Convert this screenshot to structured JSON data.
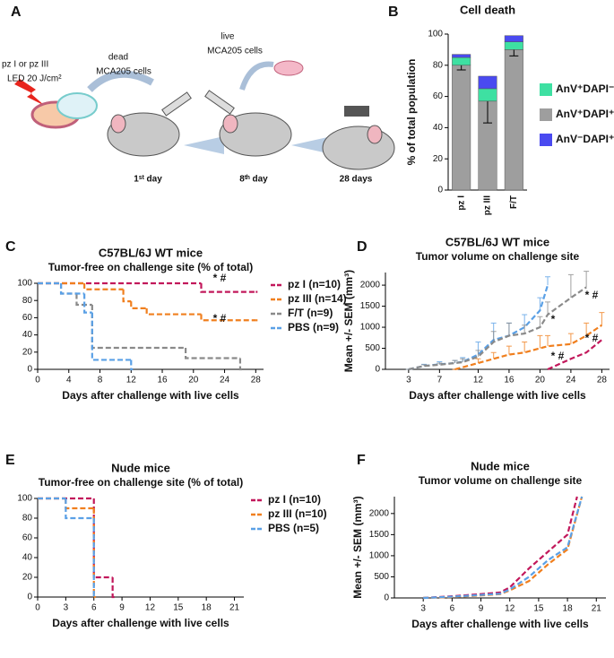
{
  "panel_labels": [
    "A",
    "B",
    "C",
    "D",
    "E",
    "F"
  ],
  "schematic": {
    "texts": [
      "pz I or pz III",
      "LED 20 J/cm²",
      "dead",
      "MCA205 cells",
      "live",
      "MCA205 cells",
      "1ˢᵗ day",
      "8ᵗʰ day",
      "28 days"
    ]
  },
  "chart_data": [
    {
      "type": "bar",
      "stacked": true,
      "title": "Cell death",
      "ylabel": "% of total population",
      "categories": [
        "pz I",
        "pz III",
        "F/T"
      ],
      "legend": "right",
      "series": [
        {
          "name": "AnV⁺DAPI⁺",
          "color": "#9e9e9e",
          "values": [
            80,
            57,
            90
          ],
          "errors": [
            3,
            14,
            4
          ]
        },
        {
          "name": "AnV⁺DAPI⁻",
          "color": "#3ee0a2",
          "values": [
            5,
            8,
            5
          ]
        },
        {
          "name": "AnV⁻DAPI⁺",
          "color": "#4a4af0",
          "values": [
            2,
            8,
            4
          ]
        }
      ],
      "ylim": [
        0,
        100
      ],
      "yticks": [
        0,
        20,
        40,
        60,
        80,
        100
      ]
    },
    {
      "type": "step",
      "title": "C57BL/6J WT mice",
      "subtitle": "Tumor-free on challenge site  (% of total)",
      "xlabel": "Days after challenge with live cells",
      "legend": "right",
      "series": [
        {
          "name": "pz I (n=10)",
          "color": "#c2185b",
          "x": [
            0,
            21,
            28
          ],
          "values": [
            100,
            90,
            90
          ]
        },
        {
          "name": "pz III (n=14)",
          "color": "#f07f1e",
          "x": [
            0,
            6,
            11,
            12,
            14,
            21,
            28
          ],
          "values": [
            100,
            93,
            79,
            71,
            64,
            57,
            57
          ]
        },
        {
          "name": "F/T (n=9)",
          "color": "#8a8a8a",
          "x": [
            0,
            3,
            5,
            7,
            19,
            26
          ],
          "values": [
            100,
            88,
            75,
            25,
            13,
            0
          ]
        },
        {
          "name": "PBS (n=9)",
          "color": "#5aa0e6",
          "x": [
            0,
            3,
            6,
            7,
            12
          ],
          "values": [
            100,
            88,
            66,
            11,
            0
          ]
        }
      ],
      "annotations": [
        "* #",
        "* #"
      ],
      "xlim": [
        0,
        29
      ],
      "xticks": [
        0,
        4,
        8,
        12,
        16,
        20,
        24,
        28
      ],
      "ylim": [
        0,
        100
      ],
      "yticks": [
        0,
        20,
        40,
        60,
        80,
        100
      ]
    },
    {
      "type": "line",
      "title": "C57BL/6J WT mice",
      "subtitle": "Tumor volume on challenge site",
      "xlabel": "Days after challenge with live cells",
      "ylabel": "Mean +/- SEM (mm³)",
      "series": [
        {
          "color": "#5aa0e6",
          "x": [
            3,
            5,
            7,
            9,
            10,
            12,
            14,
            16,
            18,
            20,
            21
          ],
          "values": [
            0,
            80,
            120,
            150,
            180,
            350,
            700,
            800,
            1000,
            1400,
            2000
          ],
          "errors": [
            0,
            40,
            60,
            60,
            100,
            300,
            400,
            300,
            300,
            300,
            200
          ]
        },
        {
          "color": "#8a8a8a",
          "x": [
            3,
            5,
            7,
            9,
            10,
            12,
            14,
            16,
            18,
            20,
            21,
            24,
            26
          ],
          "values": [
            0,
            80,
            110,
            150,
            170,
            300,
            650,
            800,
            850,
            1000,
            1300,
            1700,
            1950
          ],
          "errors": [
            0,
            30,
            40,
            60,
            80,
            150,
            250,
            300,
            200,
            250,
            300,
            550,
            380
          ]
        },
        {
          "color": "#f07f1e",
          "x": [
            9,
            12,
            14,
            16,
            18,
            20,
            21,
            24,
            26,
            28
          ],
          "values": [
            0,
            150,
            250,
            350,
            400,
            500,
            550,
            600,
            800,
            1050
          ],
          "errors": [
            0,
            100,
            150,
            200,
            250,
            300,
            250,
            250,
            300,
            300
          ]
        },
        {
          "color": "#c2185b",
          "x": [
            21,
            24,
            26,
            28
          ],
          "values": [
            0,
            250,
            400,
            700
          ]
        }
      ],
      "annotations": [
        "* #",
        "*",
        "* #",
        "* #"
      ],
      "xlim": [
        0,
        29
      ],
      "xticks": [
        3,
        7,
        12,
        16,
        20,
        24,
        28
      ],
      "ylim": [
        0,
        2300
      ],
      "yticks": [
        0,
        500,
        1000,
        1500,
        2000
      ]
    },
    {
      "type": "step",
      "title": "Nude mice",
      "subtitle": "Tumor-free on challenge site  (% of total)",
      "xlabel": "Days after challenge with live cells",
      "legend": "right",
      "series": [
        {
          "name": "pz I (n=10)",
          "color": "#c2185b",
          "x": [
            0,
            6,
            8
          ],
          "values": [
            100,
            20,
            0
          ]
        },
        {
          "name": "pz III (n=10)",
          "color": "#f07f1e",
          "x": [
            0,
            3,
            6
          ],
          "values": [
            100,
            90,
            0
          ]
        },
        {
          "name": "PBS (n=5)",
          "color": "#5aa0e6",
          "x": [
            0,
            3,
            6
          ],
          "values": [
            100,
            80,
            0
          ]
        }
      ],
      "xlim": [
        0,
        22
      ],
      "xticks": [
        0,
        3,
        6,
        9,
        12,
        15,
        18,
        21
      ],
      "ylim": [
        0,
        100
      ],
      "yticks": [
        0,
        20,
        40,
        60,
        80,
        100
      ]
    },
    {
      "type": "line",
      "title": "Nude mice",
      "subtitle": "Tumor volume on challenge site",
      "xlabel": "Days after challenge with live cells",
      "ylabel": "Mean +/- SEM (mm³)",
      "series": [
        {
          "color": "#c2185b",
          "x": [
            3,
            6,
            9,
            11,
            12,
            14,
            16,
            18,
            19
          ],
          "values": [
            0,
            40,
            90,
            130,
            250,
            700,
            1100,
            1500,
            2400
          ]
        },
        {
          "color": "#f07f1e",
          "x": [
            3,
            6,
            9,
            11,
            12,
            14,
            16,
            18,
            19.5
          ],
          "values": [
            0,
            20,
            60,
            90,
            180,
            400,
            800,
            1150,
            2400
          ]
        },
        {
          "color": "#5aa0e6",
          "x": [
            3,
            6,
            9,
            11,
            12,
            14,
            16,
            18,
            19.5
          ],
          "values": [
            0,
            30,
            70,
            100,
            200,
            500,
            900,
            1200,
            2400
          ]
        }
      ],
      "xlim": [
        0,
        22
      ],
      "xticks": [
        3,
        6,
        9,
        12,
        15,
        18,
        21
      ],
      "ylim": [
        0,
        2400
      ],
      "yticks": [
        0,
        500,
        1000,
        1500,
        2000
      ]
    }
  ]
}
